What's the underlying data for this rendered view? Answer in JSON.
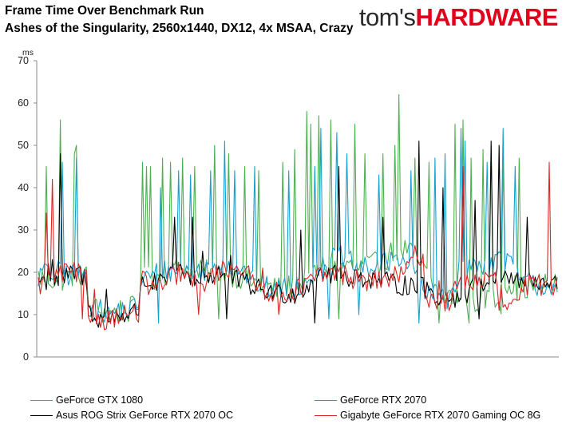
{
  "title_line1": "Frame Time Over Benchmark Run",
  "title_line2": "Ashes of the Singularity, 2560x1440, DX12, 4x MSAA, Crazy",
  "logo": {
    "part1": "tom's",
    "part2": "HARDWARE"
  },
  "chart_data": {
    "type": "line",
    "title": "Frame Time Over Benchmark Run",
    "subtitle": "Ashes of the Singularity, 2560x1440, DX12, 4x MSAA, Crazy",
    "ylabel": "ms",
    "xlabel": "",
    "ylim": [
      0,
      70
    ],
    "yticks": [
      "0",
      "10",
      "20",
      "30",
      "40",
      "50",
      "60",
      "70"
    ],
    "grid": false,
    "legend_position": "bottom",
    "x_count": 260,
    "series": [
      {
        "name": "GeForce GTX 1080",
        "color": "#4caf50",
        "base": [
          [
            0,
            19
          ],
          [
            10,
            18
          ],
          [
            20,
            20
          ],
          [
            24,
            19
          ],
          [
            25,
            12
          ],
          [
            30,
            11
          ],
          [
            35,
            10
          ],
          [
            40,
            11
          ],
          [
            45,
            11
          ],
          [
            50,
            12
          ],
          [
            51,
            18
          ],
          [
            60,
            19
          ],
          [
            70,
            21
          ],
          [
            80,
            20
          ],
          [
            90,
            20
          ],
          [
            100,
            19
          ],
          [
            110,
            17
          ],
          [
            120,
            16
          ],
          [
            130,
            17
          ],
          [
            140,
            21
          ],
          [
            150,
            22
          ],
          [
            160,
            21
          ],
          [
            170,
            22
          ],
          [
            180,
            26
          ],
          [
            185,
            25
          ],
          [
            190,
            22
          ],
          [
            200,
            15
          ],
          [
            210,
            13
          ],
          [
            220,
            13
          ],
          [
            225,
            14
          ],
          [
            232,
            13
          ],
          [
            233,
            18
          ],
          [
            240,
            16
          ],
          [
            250,
            17
          ],
          [
            259,
            17
          ]
        ],
        "noise": 3,
        "spikes": [
          [
            4,
            45
          ],
          [
            11,
            56
          ],
          [
            18,
            48
          ],
          [
            19,
            50
          ],
          [
            52,
            46
          ],
          [
            54,
            45
          ],
          [
            56,
            45
          ],
          [
            62,
            47
          ],
          [
            66,
            46
          ],
          [
            72,
            47
          ],
          [
            78,
            45
          ],
          [
            88,
            50
          ],
          [
            95,
            48
          ],
          [
            103,
            45
          ],
          [
            110,
            44
          ],
          [
            122,
            46
          ],
          [
            128,
            49
          ],
          [
            134,
            58
          ],
          [
            136,
            55
          ],
          [
            140,
            57
          ],
          [
            146,
            56
          ],
          [
            150,
            54
          ],
          [
            158,
            55
          ],
          [
            163,
            48
          ],
          [
            172,
            48
          ],
          [
            178,
            50
          ],
          [
            180,
            62
          ],
          [
            188,
            47
          ],
          [
            195,
            46
          ],
          [
            200,
            44
          ],
          [
            208,
            55
          ],
          [
            212,
            56
          ],
          [
            216,
            47
          ],
          [
            222,
            49
          ],
          [
            226,
            50
          ],
          [
            232,
            48
          ],
          [
            240,
            47
          ]
        ],
        "dips": [
          [
            40,
            8
          ],
          [
            90,
            9
          ],
          [
            150,
            9
          ],
          [
            200,
            8
          ],
          [
            215,
            8
          ]
        ]
      },
      {
        "name": "GeForce RTX 2070",
        "color": "#17a0cf",
        "base": [
          [
            0,
            19
          ],
          [
            10,
            20
          ],
          [
            20,
            19
          ],
          [
            24,
            19
          ],
          [
            25,
            12
          ],
          [
            30,
            11
          ],
          [
            35,
            10
          ],
          [
            40,
            11
          ],
          [
            45,
            11
          ],
          [
            50,
            12
          ],
          [
            51,
            18
          ],
          [
            60,
            20
          ],
          [
            70,
            21
          ],
          [
            80,
            20
          ],
          [
            90,
            22
          ],
          [
            100,
            21
          ],
          [
            110,
            17
          ],
          [
            120,
            16
          ],
          [
            130,
            17
          ],
          [
            140,
            21
          ],
          [
            150,
            24
          ],
          [
            160,
            21
          ],
          [
            170,
            21
          ],
          [
            180,
            24
          ],
          [
            185,
            22
          ],
          [
            190,
            18
          ],
          [
            195,
            14
          ],
          [
            205,
            14
          ],
          [
            210,
            20
          ],
          [
            220,
            22
          ],
          [
            225,
            22
          ],
          [
            232,
            24
          ],
          [
            235,
            22
          ],
          [
            240,
            18
          ],
          [
            250,
            17
          ],
          [
            259,
            17
          ]
        ],
        "noise": 2.8,
        "spikes": [
          [
            3,
            22
          ],
          [
            12,
            46
          ],
          [
            19,
            47
          ],
          [
            61,
            40
          ],
          [
            70,
            44
          ],
          [
            76,
            43
          ],
          [
            86,
            44
          ],
          [
            93,
            51
          ],
          [
            98,
            44
          ],
          [
            108,
            45
          ],
          [
            125,
            44
          ],
          [
            138,
            45
          ],
          [
            141,
            54
          ],
          [
            145,
            54
          ],
          [
            149,
            53
          ],
          [
            154,
            48
          ],
          [
            160,
            47
          ],
          [
            170,
            43
          ],
          [
            186,
            44
          ],
          [
            198,
            47
          ],
          [
            203,
            48
          ],
          [
            211,
            54
          ],
          [
            213,
            51
          ],
          [
            224,
            46
          ],
          [
            232,
            54
          ],
          [
            238,
            45
          ]
        ],
        "dips": [
          [
            60,
            8
          ],
          [
            145,
            9
          ],
          [
            160,
            10
          ],
          [
            190,
            8
          ]
        ]
      },
      {
        "name": "Asus ROG Strix GeForce RTX 2070 OC",
        "color": "#000000",
        "base": [
          [
            0,
            18
          ],
          [
            10,
            18
          ],
          [
            20,
            20
          ],
          [
            24,
            18
          ],
          [
            25,
            11
          ],
          [
            30,
            10
          ],
          [
            35,
            9
          ],
          [
            40,
            10
          ],
          [
            45,
            10
          ],
          [
            50,
            11
          ],
          [
            51,
            18
          ],
          [
            60,
            17
          ],
          [
            70,
            20
          ],
          [
            80,
            18
          ],
          [
            90,
            20
          ],
          [
            100,
            18
          ],
          [
            110,
            16
          ],
          [
            120,
            15
          ],
          [
            130,
            15
          ],
          [
            140,
            20
          ],
          [
            150,
            19
          ],
          [
            160,
            19
          ],
          [
            170,
            18
          ],
          [
            180,
            17
          ],
          [
            185,
            17
          ],
          [
            190,
            17
          ],
          [
            200,
            14
          ],
          [
            210,
            14
          ],
          [
            220,
            17
          ],
          [
            225,
            18
          ],
          [
            232,
            19
          ],
          [
            240,
            18
          ],
          [
            250,
            17
          ],
          [
            259,
            17
          ]
        ],
        "noise": 2.5,
        "spikes": [
          [
            5,
            22
          ],
          [
            7,
            23
          ],
          [
            11,
            48
          ],
          [
            34,
            16
          ],
          [
            68,
            33
          ],
          [
            77,
            33
          ],
          [
            82,
            25
          ],
          [
            96,
            24
          ],
          [
            131,
            30
          ],
          [
            150,
            45
          ],
          [
            172,
            33
          ],
          [
            190,
            51
          ],
          [
            202,
            40
          ],
          [
            212,
            44
          ],
          [
            218,
            37
          ],
          [
            226,
            51
          ],
          [
            230,
            50
          ],
          [
            244,
            33
          ]
        ],
        "dips": [
          [
            30,
            7
          ],
          [
            94,
            9
          ],
          [
            138,
            8
          ],
          [
            220,
            9
          ]
        ]
      },
      {
        "name": "Gigabyte GeForce RTX 2070 Gaming OC 8G",
        "color": "#dc2626",
        "base": [
          [
            0,
            17
          ],
          [
            10,
            19
          ],
          [
            20,
            20
          ],
          [
            24,
            18
          ],
          [
            25,
            10
          ],
          [
            30,
            9
          ],
          [
            35,
            9
          ],
          [
            40,
            10
          ],
          [
            45,
            10
          ],
          [
            50,
            10
          ],
          [
            51,
            18
          ],
          [
            60,
            16
          ],
          [
            70,
            20
          ],
          [
            80,
            17
          ],
          [
            90,
            20
          ],
          [
            100,
            22
          ],
          [
            110,
            16
          ],
          [
            120,
            15
          ],
          [
            130,
            16
          ],
          [
            140,
            19
          ],
          [
            150,
            20
          ],
          [
            160,
            18
          ],
          [
            170,
            18
          ],
          [
            180,
            19
          ],
          [
            185,
            21
          ],
          [
            188,
            24
          ],
          [
            192,
            24
          ],
          [
            193,
            14
          ],
          [
            205,
            13
          ],
          [
            210,
            17
          ],
          [
            220,
            18
          ],
          [
            230,
            18
          ],
          [
            232,
            12
          ],
          [
            240,
            12
          ],
          [
            242,
            17
          ],
          [
            250,
            17
          ],
          [
            259,
            17
          ]
        ],
        "noise": 2.6,
        "spikes": [
          [
            4,
            34
          ],
          [
            7,
            42
          ],
          [
            13,
            22
          ],
          [
            22,
            53
          ],
          [
            28,
            16
          ],
          [
            112,
            21
          ],
          [
            200,
            18
          ],
          [
            212,
            45
          ],
          [
            228,
            20
          ],
          [
            255,
            46
          ]
        ],
        "dips": [
          [
            22,
            9
          ],
          [
            80,
            10
          ],
          [
            120,
            10
          ],
          [
            230,
            11
          ]
        ]
      }
    ]
  }
}
